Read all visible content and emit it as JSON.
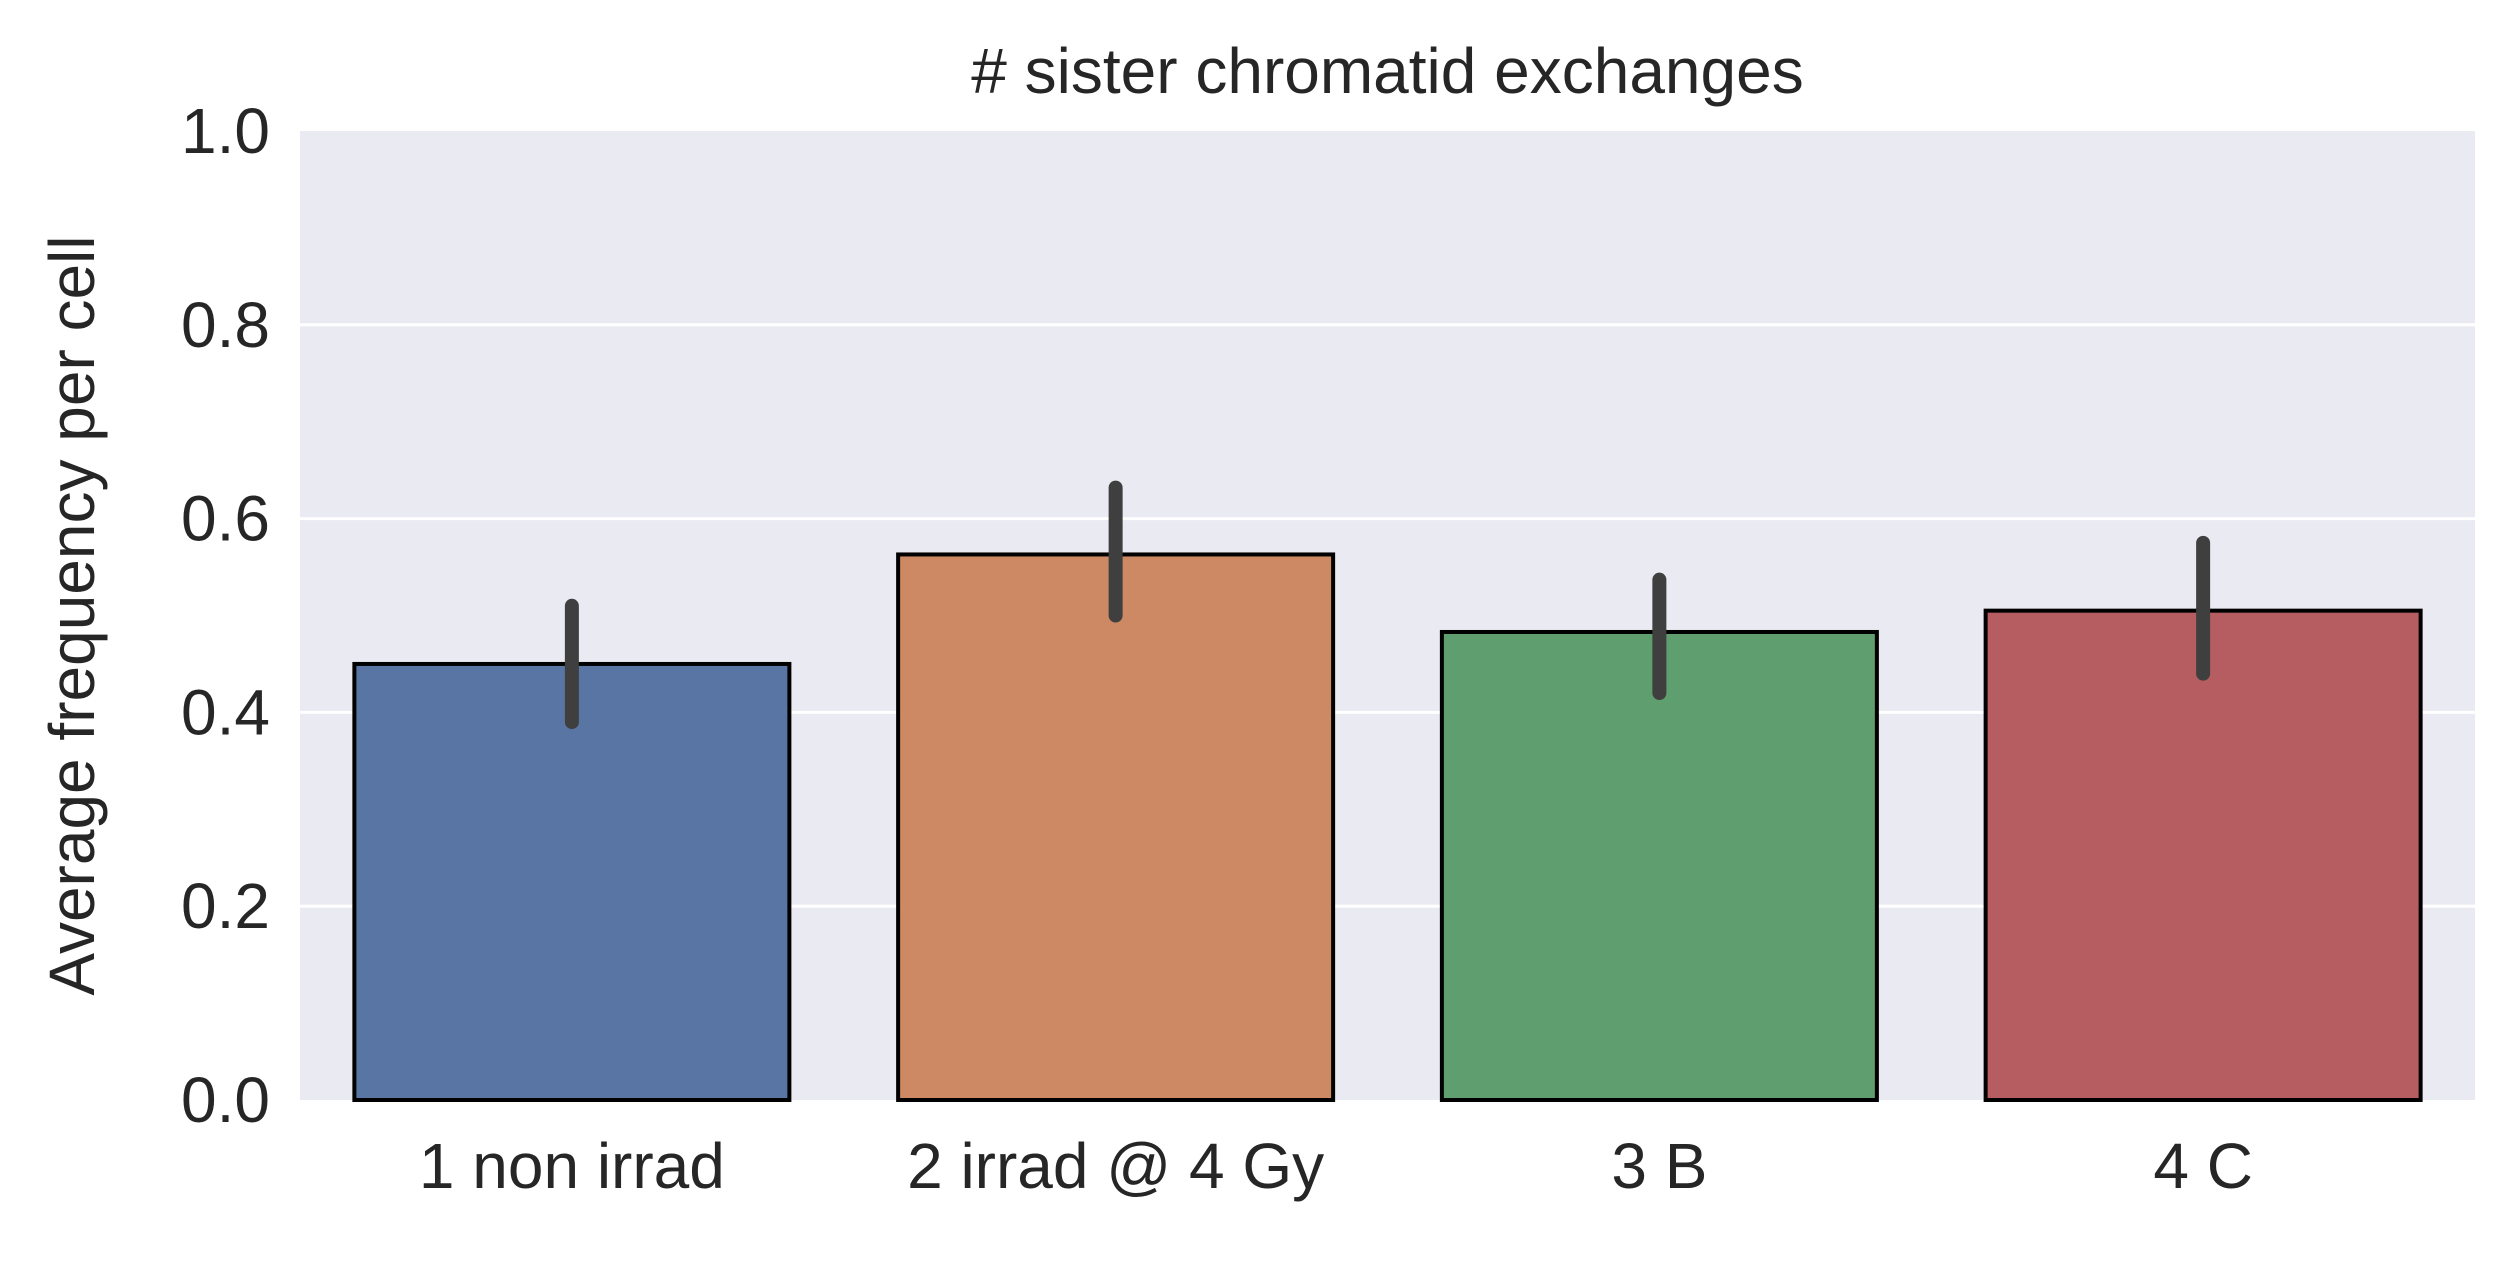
{
  "chart_data": {
    "type": "bar",
    "title": "# sister chromatid exchanges",
    "xlabel": "",
    "ylabel": "Average frequency per cell",
    "ylim": [
      0,
      1.0
    ],
    "yticks": [
      0.0,
      0.2,
      0.4,
      0.6,
      0.8,
      1.0
    ],
    "ytick_labels": [
      "0.0",
      "0.2",
      "0.4",
      "0.6",
      "0.8",
      "1.0"
    ],
    "categories": [
      "1 non irrad",
      "2 irrad @ 4 Gy",
      "3 B",
      "4 C"
    ],
    "values": [
      0.45,
      0.563,
      0.483,
      0.505
    ],
    "error_low": [
      0.39,
      0.5,
      0.42,
      0.44
    ],
    "error_high": [
      0.51,
      0.632,
      0.537,
      0.575
    ],
    "bar_colors": [
      "#5975a4",
      "#cc8963",
      "#5f9e6e",
      "#b55d60"
    ],
    "grid": true,
    "legend": "none",
    "colors": {
      "plot_background": "#eaeaf2",
      "grid": "#ffffff",
      "bar_edge": "#000000",
      "error_bar": "#3f3f3f",
      "text": "#262626"
    }
  }
}
